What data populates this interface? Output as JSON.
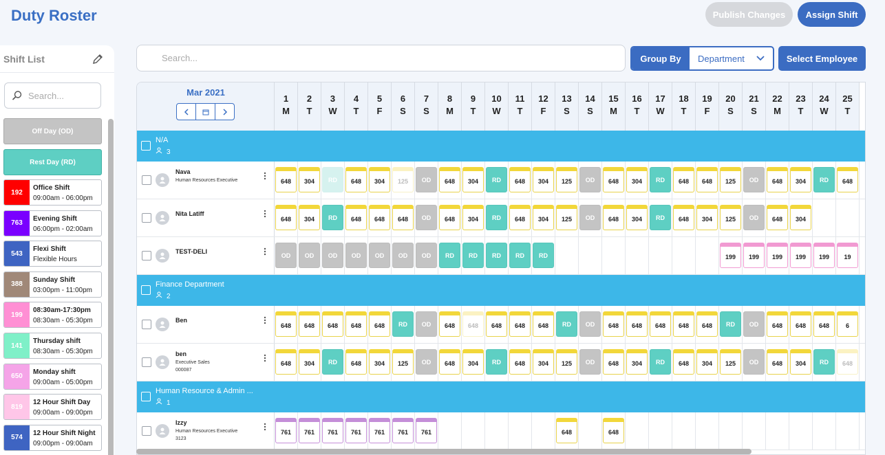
{
  "header": {
    "title": "Duty Roster",
    "publish_label": "Publish Changes",
    "assign_label": "Assign Shift"
  },
  "shift_list": {
    "title": "Shift List",
    "search_placeholder": "Search...",
    "off_day_label": "Off Day (OD)",
    "rest_day_label": "Rest Day (RD)",
    "items": [
      {
        "code": "192",
        "name": "Office Shift",
        "time": "09:00am - 06:00pm",
        "color": "#ff0000"
      },
      {
        "code": "763",
        "name": "Evening Shift",
        "time": "06:00pm - 02:00am",
        "color": "#7a00ff"
      },
      {
        "code": "543",
        "name": "Flexi Shift",
        "time": "Flexible Hours",
        "color": "#3e64c2"
      },
      {
        "code": "388",
        "name": "Sunday Shift",
        "time": "03:00pm - 11:00pm",
        "color": "#a08878"
      },
      {
        "code": "199",
        "name": "08:30am-17:30pm",
        "time": "08:30am - 05:30pm",
        "color": "#ff8fd4"
      },
      {
        "code": "141",
        "name": "Thursday shift",
        "time": "08:30am - 05:30pm",
        "color": "#7ff0c8"
      },
      {
        "code": "650",
        "name": "Monday shift",
        "time": "09:00am - 05:00pm",
        "color": "#f5a4e8"
      },
      {
        "code": "819",
        "name": "12 Hour Shift Day",
        "time": "09:00am - 09:00pm",
        "color": "#ffc6e8"
      },
      {
        "code": "574",
        "name": "12 Hour Shift Night",
        "time": "09:00pm - 09:00am",
        "color": "#3e64c2"
      }
    ]
  },
  "toolbar": {
    "search_placeholder": "Search...",
    "group_by_label": "Group By",
    "group_by_value": "Department",
    "select_employee_label": "Select Employee"
  },
  "roster": {
    "month": "Mar 2021",
    "days": [
      {
        "d": "1",
        "w": "M"
      },
      {
        "d": "2",
        "w": "T"
      },
      {
        "d": "3",
        "w": "W"
      },
      {
        "d": "4",
        "w": "T"
      },
      {
        "d": "5",
        "w": "F"
      },
      {
        "d": "6",
        "w": "S"
      },
      {
        "d": "7",
        "w": "S"
      },
      {
        "d": "8",
        "w": "M"
      },
      {
        "d": "9",
        "w": "T"
      },
      {
        "d": "10",
        "w": "W"
      },
      {
        "d": "11",
        "w": "T"
      },
      {
        "d": "12",
        "w": "F"
      },
      {
        "d": "13",
        "w": "S"
      },
      {
        "d": "14",
        "w": "S"
      },
      {
        "d": "15",
        "w": "M"
      },
      {
        "d": "16",
        "w": "T"
      },
      {
        "d": "17",
        "w": "W"
      },
      {
        "d": "18",
        "w": "T"
      },
      {
        "d": "19",
        "w": "F"
      },
      {
        "d": "20",
        "w": "S"
      },
      {
        "d": "21",
        "w": "S"
      },
      {
        "d": "22",
        "w": "M"
      },
      {
        "d": "23",
        "w": "T"
      },
      {
        "d": "24",
        "w": "W"
      },
      {
        "d": "25",
        "w": "T"
      }
    ],
    "groups": [
      {
        "name": "N/A",
        "count": "3",
        "employees": [
          {
            "name": "Nava",
            "title": "Human Resources Executive",
            "id": "",
            "cells": [
              "648",
              "304",
              "~RD",
              "648",
              "304",
              "~125",
              "OD",
              "648",
              "304",
              "RD",
              "648",
              "304",
              "125",
              "OD",
              "648",
              "304",
              "RD",
              "648",
              "648",
              "125",
              "OD",
              "648",
              "304",
              "RD",
              "648"
            ]
          },
          {
            "name": "Nita Latiff",
            "title": "",
            "id": "",
            "cells": [
              "648",
              "304",
              "RD",
              "648",
              "648",
              "648",
              "OD",
              "648",
              "304",
              "RD",
              "648",
              "304",
              "125",
              "OD",
              "648",
              "304",
              "RD",
              "648",
              "304",
              "125",
              "OD",
              "648",
              "304",
              "",
              ""
            ]
          },
          {
            "name": "TEST-DELI",
            "title": "",
            "id": "",
            "cells": [
              "OD",
              "OD",
              "OD",
              "OD",
              "OD",
              "OD",
              "OD",
              "RD",
              "RD",
              "RD",
              "RD",
              "RD",
              "",
              "",
              "",
              "",
              "",
              "",
              "",
              "p199",
              "p199",
              "p199",
              "p199",
              "p199",
              "p19"
            ]
          }
        ]
      },
      {
        "name": "Finance Department",
        "count": "2",
        "employees": [
          {
            "name": "Ben",
            "title": "",
            "id": "",
            "cells": [
              "648",
              "648",
              "648",
              "648",
              "648",
              "RD",
              "OD",
              "648",
              "~648",
              "648",
              "648",
              "648",
              "RD",
              "OD",
              "648",
              "648",
              "648",
              "648",
              "648",
              "RD",
              "OD",
              "648",
              "648",
              "648",
              "6"
            ]
          },
          {
            "name": "ben",
            "title": "Executive Sales",
            "id": "000087",
            "cells": [
              "648",
              "304",
              "RD",
              "648",
              "304",
              "125",
              "OD",
              "648",
              "304",
              "RD",
              "648",
              "304",
              "125",
              "OD",
              "648",
              "304",
              "RD",
              "648",
              "304",
              "125",
              "OD",
              "648",
              "304",
              "RD",
              "~648"
            ]
          }
        ]
      },
      {
        "name": "Human Resource & Admin ...",
        "count": "1",
        "employees": [
          {
            "name": "Izzy",
            "title": "Human Resources Executive",
            "id": "3123",
            "cells": [
              "u761",
              "u761",
              "u761",
              "u761",
              "u761",
              "u761",
              "u761",
              "",
              "",
              "",
              "",
              "",
              "648",
              "",
              "648",
              "",
              "",
              "",
              "",
              "",
              "",
              "",
              "",
              "",
              ""
            ]
          }
        ]
      }
    ]
  }
}
